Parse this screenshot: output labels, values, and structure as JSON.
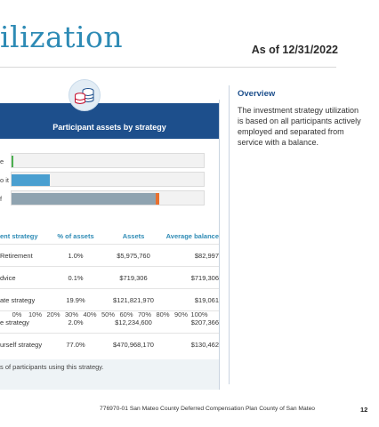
{
  "header": {
    "title": "ilization",
    "as_of": "As of 12/31/2022"
  },
  "panel": {
    "title": "Participant assets by strategy",
    "icon": "coins-stack-icon"
  },
  "chart_data": {
    "type": "bar",
    "orientation": "horizontal",
    "stacked": true,
    "categories": [
      "e",
      "o it",
      "f"
    ],
    "series": [
      {
        "values": [
          1.0,
          20.0,
          75.0
        ],
        "color": "#4a9fd0"
      },
      {
        "values": [
          0,
          0,
          2.0
        ],
        "color": "#e9712f"
      }
    ],
    "bar_colors": [
      "#4caf50",
      "#4a9fd0",
      "#8fa3b0"
    ],
    "xlim": [
      0,
      100
    ],
    "xticks": [
      "0%",
      "10%",
      "20%",
      "30%",
      "40%",
      "50%",
      "60%",
      "70%",
      "80%",
      "90%",
      "100%"
    ],
    "grid": false
  },
  "table": {
    "headers": [
      "ent strategy",
      "% of assets",
      "Assets",
      "Average balance"
    ],
    "rows": [
      [
        "Retirement",
        "1.0%",
        "$5,975,760",
        "$82,997"
      ],
      [
        "dvice",
        "0.1%",
        "$719,306",
        "$719,306"
      ],
      [
        "ate strategy",
        "19.9%",
        "$121,821,970",
        "$19,061"
      ],
      [
        "e strategy",
        "2.0%",
        "$12,234,600",
        "$207,366"
      ],
      [
        "urself strategy",
        "77.0%",
        "$470,968,170",
        "$130,462"
      ]
    ]
  },
  "note": "s of participants using this strategy.",
  "overview": {
    "title": "Overview",
    "text": "The investment strategy utilization is based on all participants actively employed and separated from service with a balance."
  },
  "footer": {
    "text": "776970-01 San Mateo County Deferred Compensation Plan County of San Mateo",
    "page": "12"
  }
}
